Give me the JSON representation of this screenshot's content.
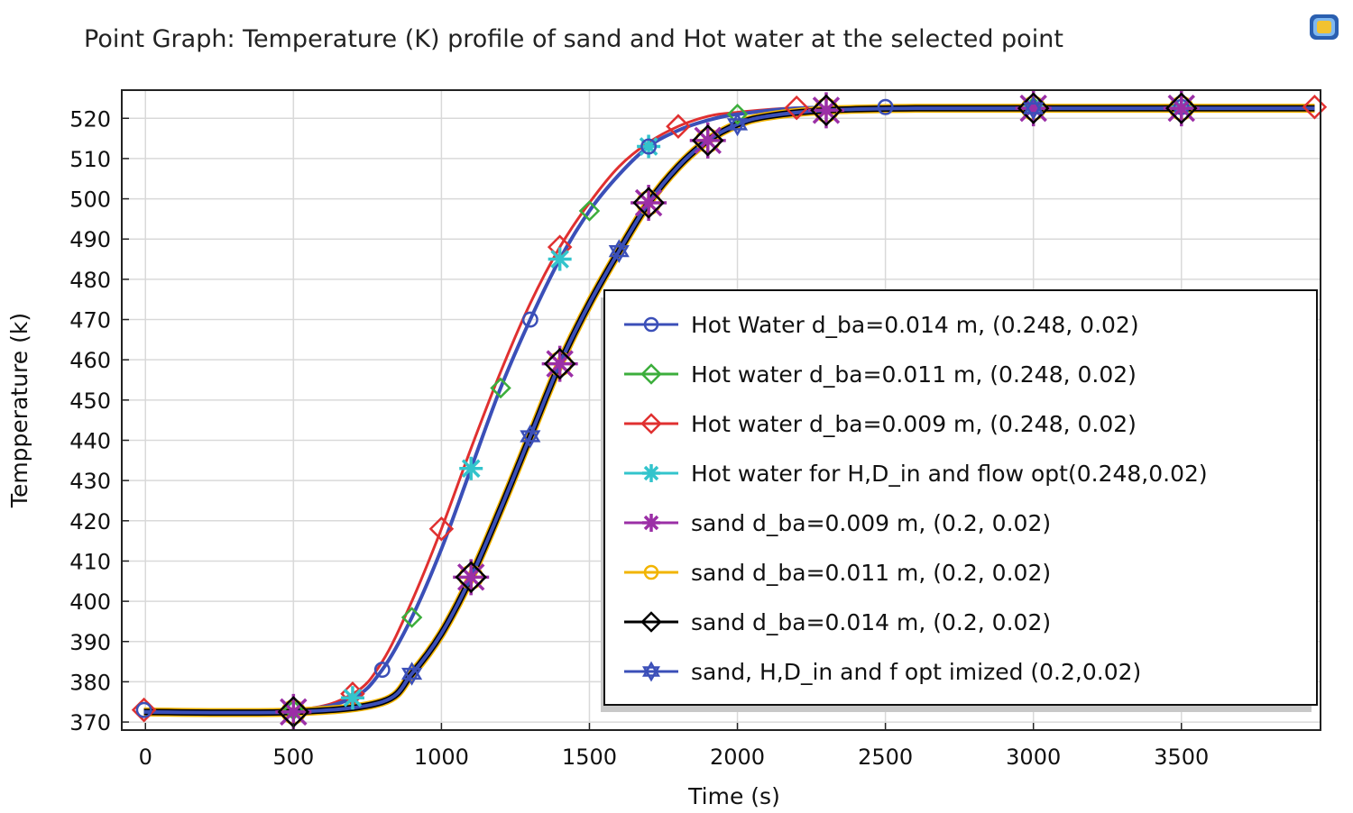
{
  "chart_data": {
    "type": "line",
    "title": "Point Graph: Temperature (K) profile of sand and Hot water at the selected point",
    "xlabel": "Time (s)",
    "ylabel": "Tempperature (k)",
    "xlim": [
      -80,
      3970
    ],
    "ylim": [
      368,
      527
    ],
    "xticks": [
      0,
      500,
      1000,
      1500,
      2000,
      2500,
      3000,
      3500
    ],
    "yticks": [
      370,
      380,
      390,
      400,
      410,
      420,
      430,
      440,
      450,
      460,
      470,
      480,
      490,
      500,
      510,
      520
    ],
    "grid": true,
    "legend_position": "lower-right",
    "series": [
      {
        "name": "Hot Water  d_ba=0.014 m, (0.248, 0.02)",
        "color": "#3b4fb8",
        "marker": "circle",
        "x": [
          -5,
          500,
          700,
          800,
          900,
          1000,
          1100,
          1200,
          1300,
          1400,
          1500,
          1600,
          1700,
          1800,
          1900,
          2000,
          2200,
          2500,
          3000,
          3500,
          3950
        ],
        "y": [
          373,
          373,
          376,
          383,
          396,
          413,
          433,
          453,
          470,
          485,
          497,
          506,
          513,
          517,
          519.5,
          521,
          522.5,
          522.8,
          522.8,
          522.8,
          522.8
        ]
      },
      {
        "name": "Hot water d_ba=0.011 m, (0.248, 0.02)",
        "color": "#3cae3c",
        "marker": "diamond-open",
        "x": [
          -5,
          500,
          700,
          800,
          900,
          1000,
          1100,
          1200,
          1300,
          1400,
          1500,
          1600,
          1700,
          1800,
          1900,
          2000,
          2200,
          2500,
          3000,
          3500,
          3950
        ],
        "y": [
          373,
          373,
          376,
          383,
          396,
          413,
          433,
          453,
          470,
          485,
          497,
          506,
          513,
          517,
          519.5,
          521,
          522.5,
          522.8,
          522.8,
          522.8,
          522.8
        ]
      },
      {
        "name": "Hot water d_ba=0.009 m, (0.248, 0.02)",
        "color": "#e03030",
        "marker": "diamond-open",
        "x": [
          -5,
          500,
          700,
          800,
          900,
          1000,
          1100,
          1200,
          1300,
          1400,
          1500,
          1600,
          1700,
          1800,
          1900,
          2000,
          2200,
          2500,
          3000,
          3500,
          3950
        ],
        "y": [
          373,
          373,
          377,
          385,
          400,
          418,
          438,
          457,
          474,
          488,
          499,
          508,
          514,
          518,
          520.5,
          521.5,
          522.6,
          522.8,
          522.8,
          522.8,
          522.8
        ]
      },
      {
        "name": "Hot water  for H,D_in and flow opt(0.248,0.02)",
        "color": "#33c4cc",
        "marker": "asterisk",
        "x": [
          -5,
          500,
          700,
          800,
          900,
          1000,
          1100,
          1200,
          1300,
          1400,
          1500,
          1600,
          1700,
          1800,
          1900,
          2000,
          2200,
          2500,
          3000,
          3500,
          3950
        ],
        "y": [
          373,
          373,
          376,
          383,
          396,
          413,
          433,
          453,
          470,
          485,
          497,
          506,
          513,
          517,
          519.5,
          521,
          522.5,
          522.8,
          522.8,
          522.8,
          522.8
        ]
      },
      {
        "name": "sand d_ba=0.009 m, (0.2, 0.02)",
        "color": "#9b2fa6",
        "marker": "asterisk",
        "x": [
          -5,
          500,
          800,
          900,
          1000,
          1100,
          1200,
          1300,
          1400,
          1500,
          1600,
          1700,
          1800,
          1900,
          2000,
          2100,
          2300,
          2600,
          3000,
          3500,
          3950
        ],
        "y": [
          372.5,
          372.5,
          375,
          382,
          392,
          406,
          423,
          441,
          459,
          474,
          487,
          499,
          508,
          514.5,
          518.5,
          520.5,
          522,
          522.5,
          522.5,
          522.5,
          522.5
        ]
      },
      {
        "name": "sand d_ba=0.011 m, (0.2, 0.02)",
        "color": "#f2b400",
        "marker": "circle-open",
        "x": [
          -5,
          500,
          800,
          900,
          1000,
          1100,
          1200,
          1300,
          1400,
          1500,
          1600,
          1700,
          1800,
          1900,
          2000,
          2100,
          2300,
          2600,
          3000,
          3500,
          3950
        ],
        "y": [
          372.5,
          372.5,
          375,
          382,
          392,
          406,
          423,
          441,
          459,
          474,
          487,
          499,
          508,
          514.5,
          518.5,
          520.5,
          522,
          522.5,
          522.5,
          522.5,
          522.5
        ]
      },
      {
        "name": "sand d_ba=0.014 m, (0.2, 0.02)",
        "color": "#000000",
        "marker": "diamond-open",
        "x": [
          -5,
          500,
          800,
          900,
          1000,
          1100,
          1200,
          1300,
          1400,
          1500,
          1600,
          1700,
          1800,
          1900,
          2000,
          2100,
          2300,
          2600,
          3000,
          3500,
          3950
        ],
        "y": [
          372.5,
          372.5,
          375,
          382,
          392,
          406,
          423,
          441,
          459,
          474,
          487,
          499,
          508,
          514.5,
          518.5,
          520.5,
          522,
          522.5,
          522.5,
          522.5,
          522.5
        ]
      },
      {
        "name": "sand, H,D_in and f opt imized (0.2,0.02)",
        "color": "#3b4fb8",
        "marker": "star-open",
        "x": [
          -5,
          500,
          800,
          900,
          1000,
          1100,
          1200,
          1300,
          1400,
          1500,
          1600,
          1700,
          1800,
          1900,
          2000,
          2100,
          2300,
          2600,
          3000,
          3500,
          3950
        ],
        "y": [
          372.5,
          372.5,
          375,
          382,
          392,
          406,
          423,
          441,
          459,
          474,
          487,
          499,
          508,
          514.5,
          518.5,
          520.5,
          522,
          522.5,
          522.5,
          522.5,
          522.5
        ]
      }
    ]
  }
}
